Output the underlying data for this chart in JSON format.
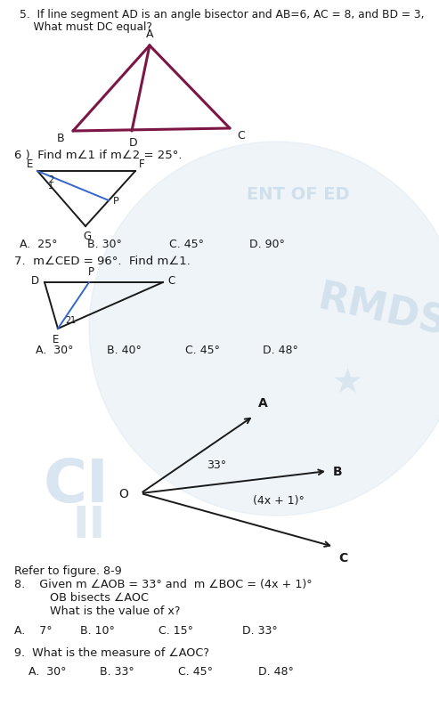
{
  "bg_color": "#ffffff",
  "q5_text_line1": "5.  If line segment AD is an angle bisector and AB=6, AC = 8, and BD = 3,",
  "q5_text_line2": "    What must DC equal?",
  "q6_header": "6 )  Find m∠1 if m∠2 = 25°.",
  "q6_choices": [
    "A.  25°",
    "B. 30°",
    "C. 45°",
    "D. 90°"
  ],
  "q7_header": "7.  m∠CED = 96°.  Find m∠1.",
  "q7_choices": [
    "A.  30°",
    "B. 40°",
    "C. 45°",
    "D. 48°"
  ],
  "q8_header": "Refer to figure. 8-9",
  "q8_text1": "8.    Given m ∠AOB = 33° and  m ∠BOC = (4x + 1)°",
  "q8_text2": "          OB bisects ∠AOC",
  "q8_text3": "          What is the value of x?",
  "q8_choices": [
    "A.    7°",
    "B. 10°",
    "C. 15°",
    "D. 33°"
  ],
  "q9_text": "9.  What is the measure of ∠AOC?",
  "q9_choices": [
    "A.  30°",
    "B. 33°",
    "C. 45°",
    "D. 48°"
  ],
  "triangle_color": "#7b1645",
  "blue_line_color": "#3366cc",
  "dark_color": "#1a1a1a",
  "watermark_circle_color": "#dce8f0",
  "watermark_text_color": "#c5d8e8"
}
